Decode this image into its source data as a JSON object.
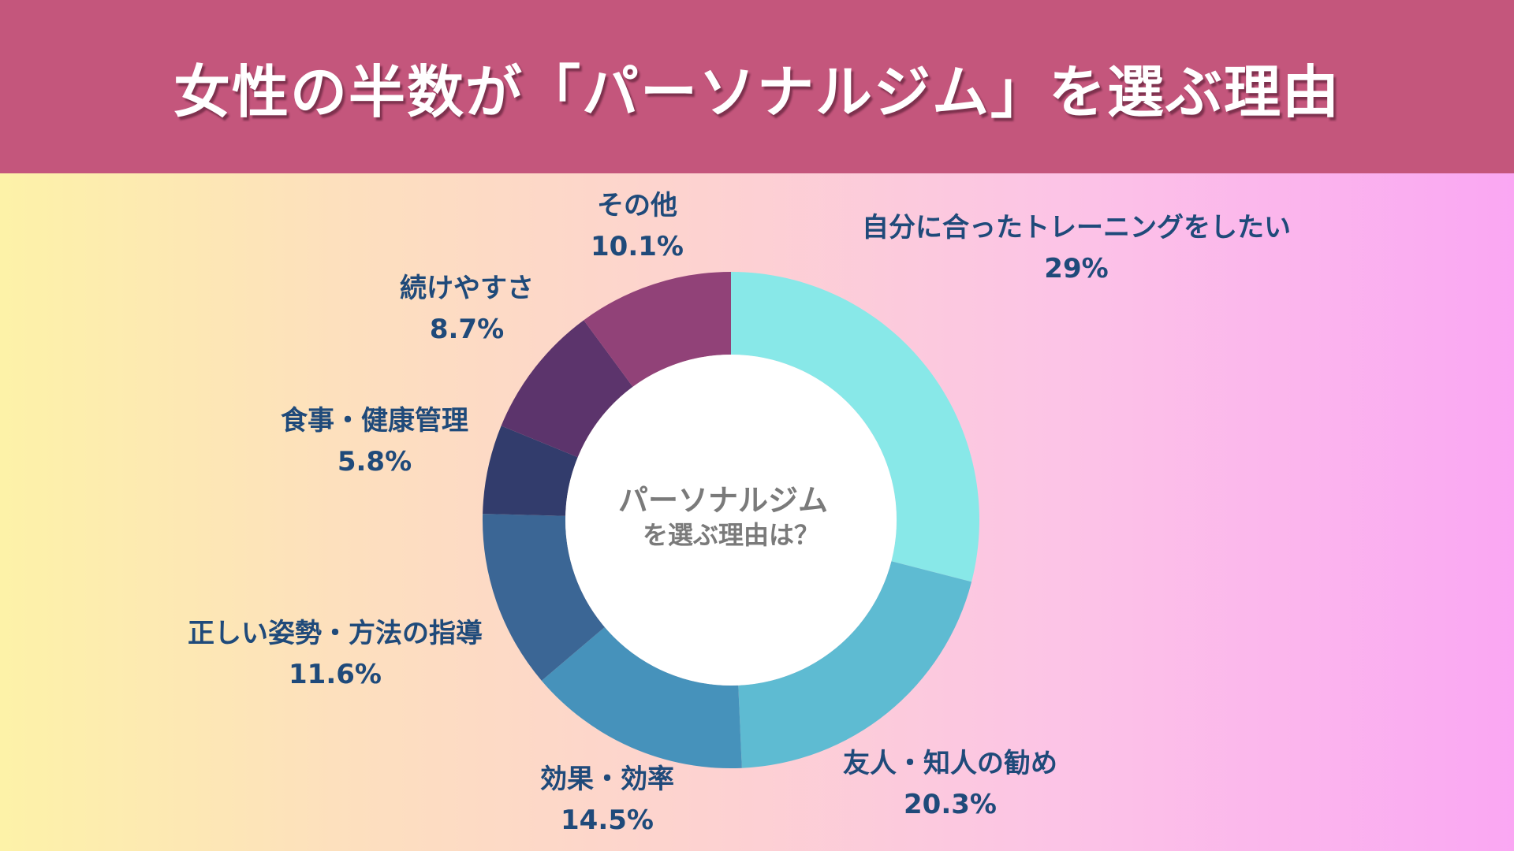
{
  "header": {
    "title": "女性の半数が「パーソナルジム」を選ぶ理由"
  },
  "chart_data": {
    "type": "pie",
    "center_label": [
      "パーソナルジム",
      "を選ぶ理由は？"
    ],
    "slices": [
      {
        "label": "自分に合ったトレーニングをしたい",
        "value": 29,
        "value_text": "29%",
        "color": "#88e8e8"
      },
      {
        "label": "友人・知人の勧め",
        "value": 20.3,
        "value_text": "20.3%",
        "color": "#5ebbd2"
      },
      {
        "label": "効果・効率",
        "value": 14.5,
        "value_text": "14.5%",
        "color": "#4692bb"
      },
      {
        "label": "正しい姿勢・方法の指導",
        "value": 11.6,
        "value_text": "11.6%",
        "color": "#3b6695"
      },
      {
        "label": "食事・健康管理",
        "value": 5.8,
        "value_text": "5.8%",
        "color": "#323c6c"
      },
      {
        "label": "続けやすさ",
        "value": 8.7,
        "value_text": "8.7%",
        "color": "#5c346c"
      },
      {
        "label": "その他",
        "value": 10.1,
        "value_text": "10.1%",
        "color": "#914278"
      }
    ]
  }
}
